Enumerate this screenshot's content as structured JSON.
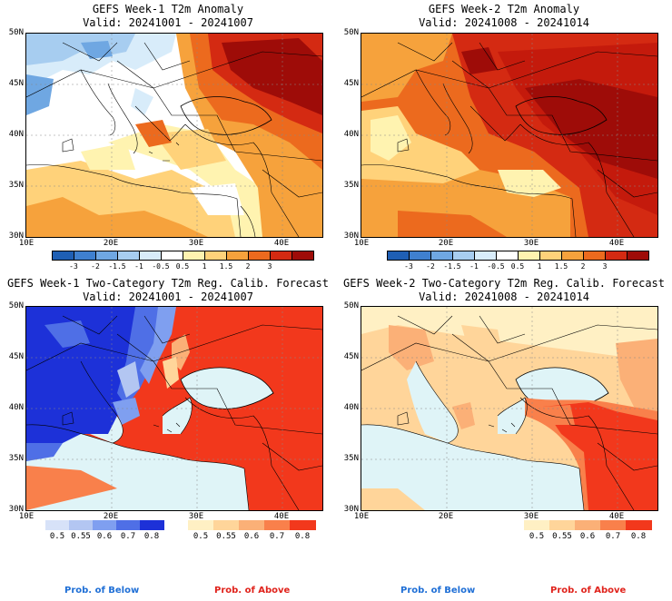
{
  "panels": [
    {
      "title1": "GEFS Week-1 T2m Anomaly",
      "title2": "Valid: 20241001 - 20241007"
    },
    {
      "title1": "GEFS Week-2 T2m Anomaly",
      "title2": "Valid: 20241008 - 20241014"
    },
    {
      "title1": "GEFS Week-1 Two-Category T2m Reg. Calib. Forecast",
      "title2": "Valid: 20241001 - 20241007"
    },
    {
      "title1": "GEFS Week-2 Two-Category T2m Reg. Calib. Forecast",
      "title2": "Valid: 20241008 - 20241014"
    }
  ],
  "lat_labels": [
    "50N",
    "45N",
    "40N",
    "35N",
    "30N"
  ],
  "lon_labels": [
    "10E",
    "20E",
    "30E",
    "40E"
  ],
  "anomaly_colorbar": {
    "labels": [
      "-3",
      "-2",
      "-1.5",
      "-1",
      "-0.5",
      "0.5",
      "1",
      "1.5",
      "2",
      "3"
    ],
    "colors": [
      "#1f5fb4",
      "#3f80cf",
      "#6fa7e2",
      "#a7cdf0",
      "#d8ecfa",
      "#ffffff",
      "#fff3b0",
      "#ffd27a",
      "#f6a23c",
      "#ec6a1e",
      "#d42a12",
      "#9e0c08"
    ]
  },
  "prob_colorbar": {
    "below_labels": [
      "0.5",
      "0.55",
      "0.6",
      "0.7",
      "0.8"
    ],
    "below_colors": [
      "#d7e2f8",
      "#b3c6f2",
      "#7f9ff0",
      "#4f6fe6",
      "#1d31d8"
    ],
    "above_labels": [
      "0.5",
      "0.55",
      "0.6",
      "0.7",
      "0.8"
    ],
    "above_colors": [
      "#fff0c4",
      "#ffd59a",
      "#fbb077",
      "#f9804b",
      "#f2381c"
    ]
  },
  "footer": {
    "below": "Prob. of Below",
    "above": "Prob. of Above"
  }
}
